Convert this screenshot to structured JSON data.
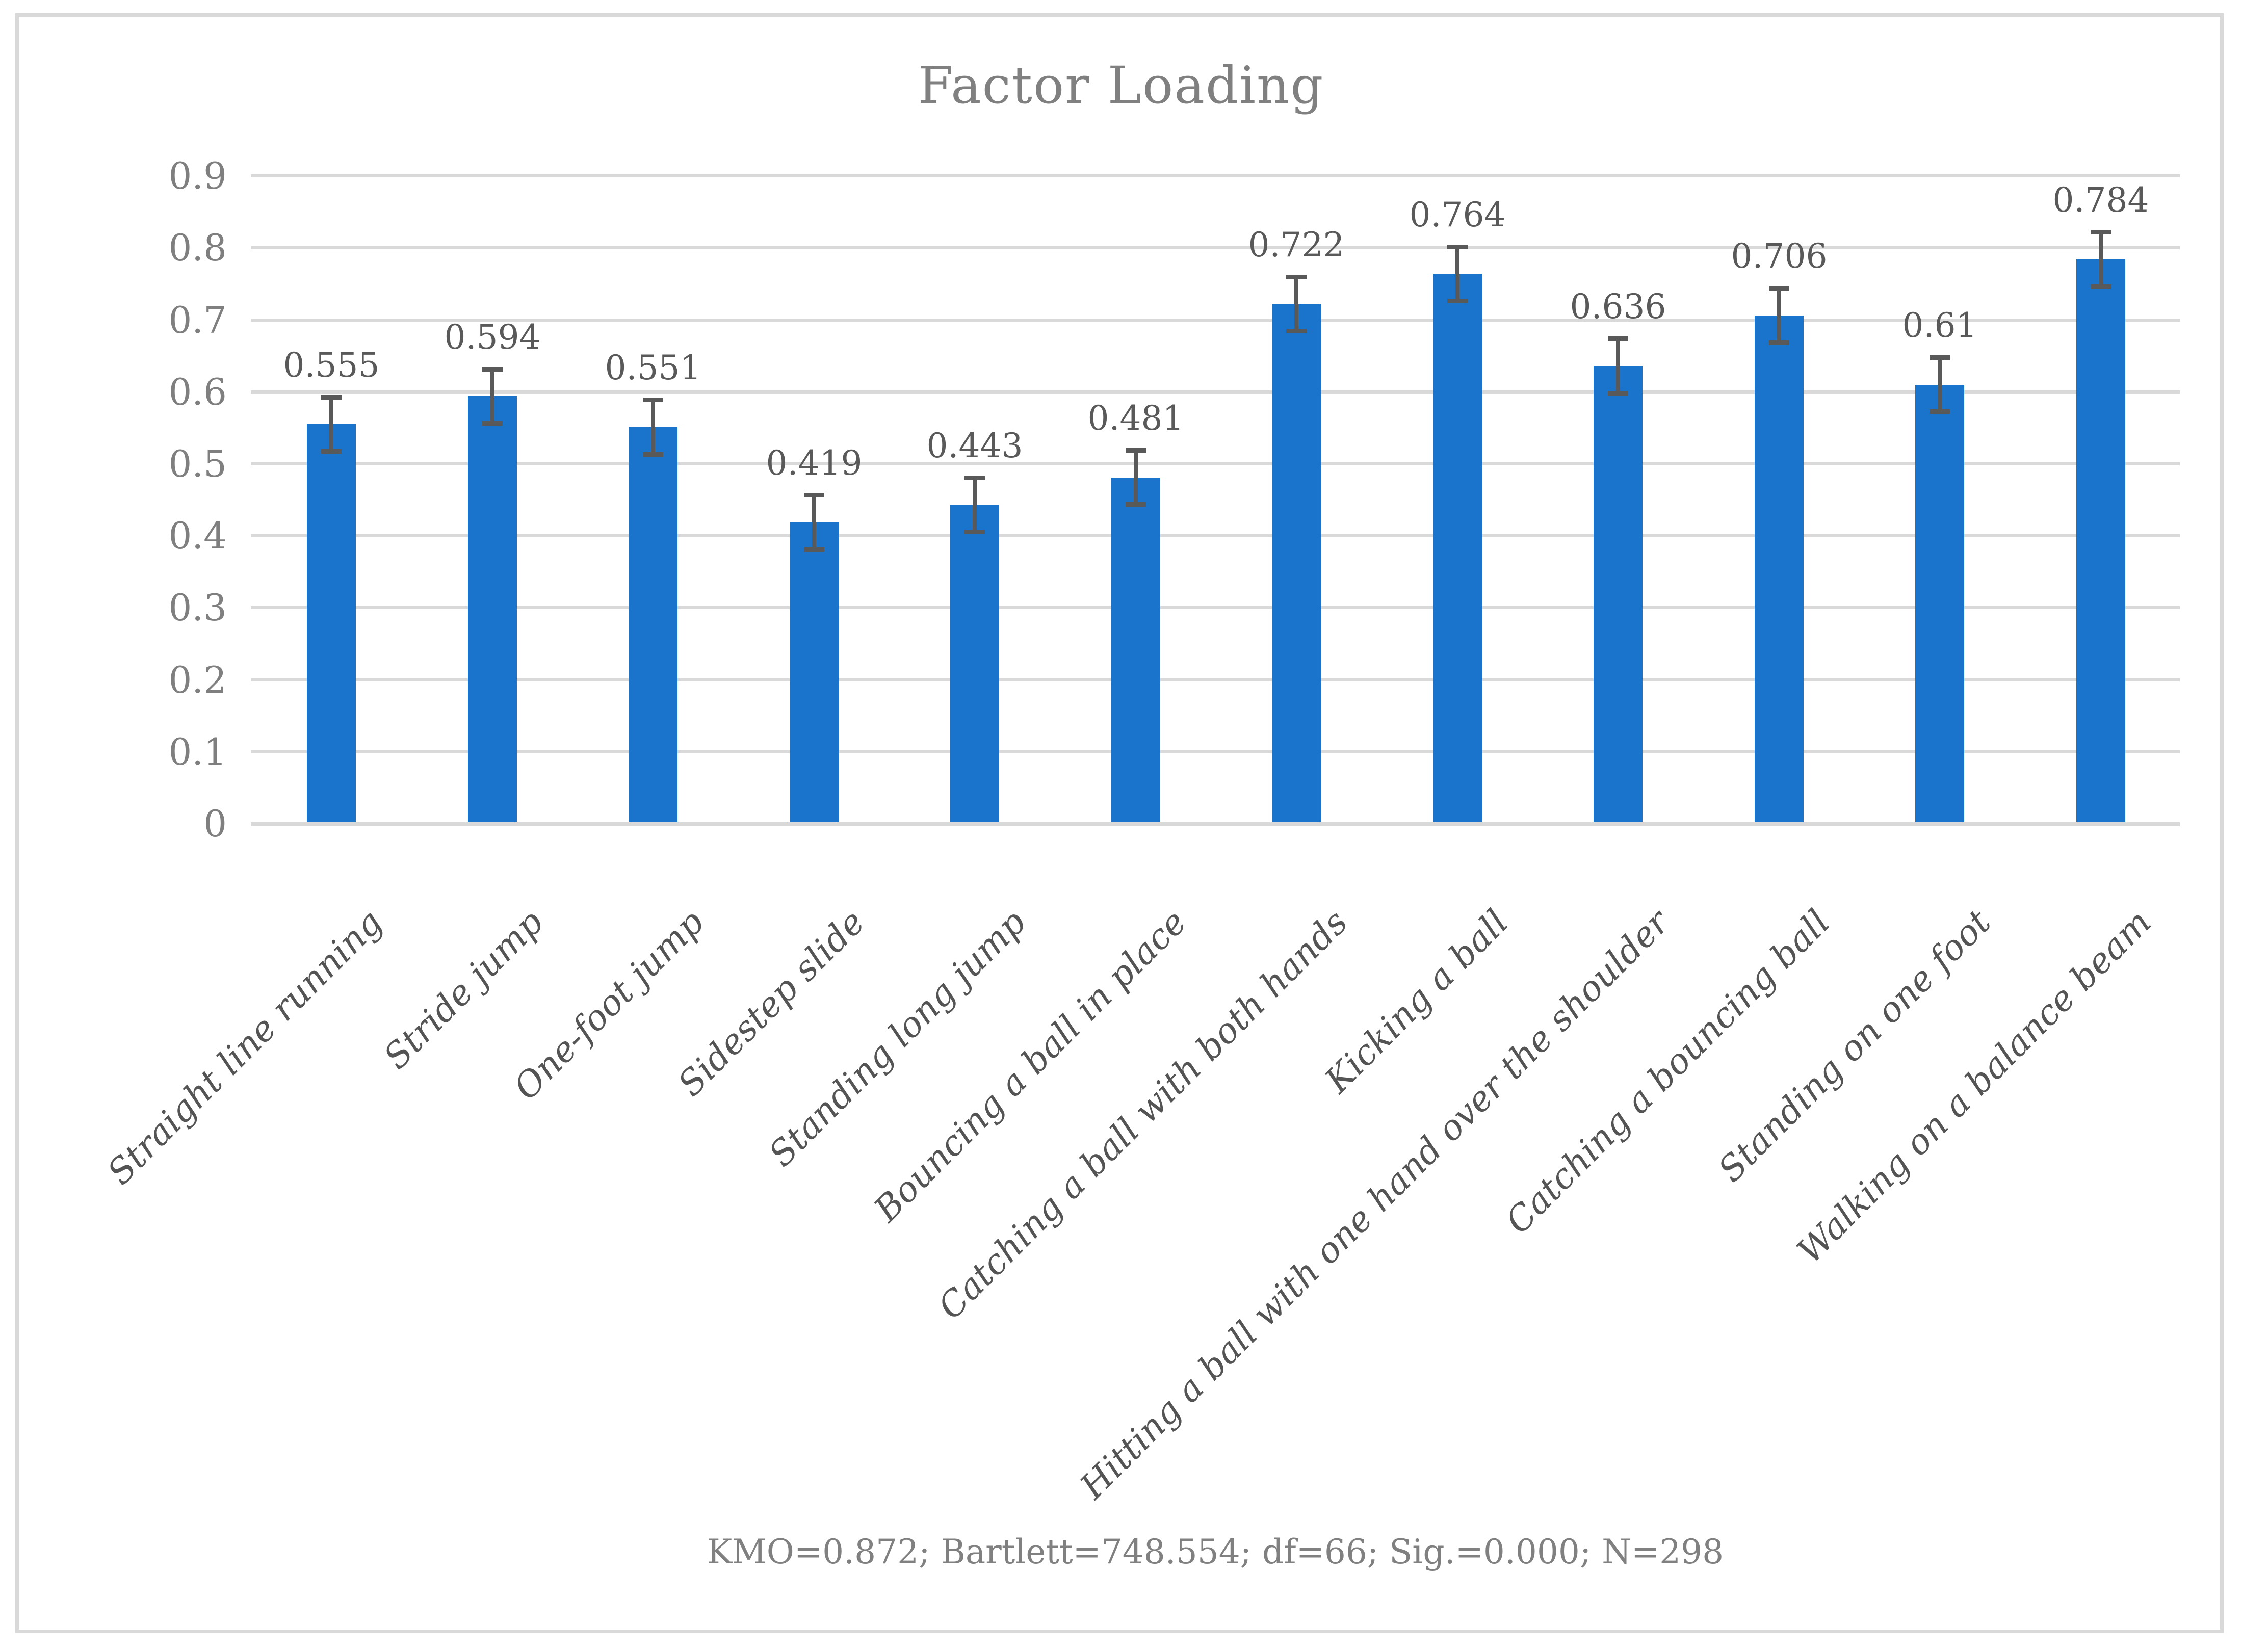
{
  "chart_data": {
    "type": "bar",
    "title": "Factor Loading",
    "categories": [
      "Straight line running",
      "Stride jump",
      "One-foot jump",
      "Sidestep slide",
      "Standing long jump",
      "Bouncing a ball in place",
      "Catching a ball with both hands",
      "Kicking a ball",
      "Hitting a ball with one hand over the shoulder",
      "Catching a bouncing ball",
      "Standing on one foot",
      "Walking on a balance beam"
    ],
    "values": [
      0.555,
      0.594,
      0.551,
      0.419,
      0.443,
      0.481,
      0.722,
      0.764,
      0.636,
      0.706,
      0.61,
      0.784
    ],
    "value_labels": [
      "0.555",
      "0.594",
      "0.551",
      "0.419",
      "0.443",
      "0.481",
      "0.722",
      "0.764",
      "0.636",
      "0.706",
      "0.61",
      "0.784"
    ],
    "error_bars": 0.038,
    "ylim": [
      0,
      0.9
    ],
    "ytick_labels": [
      "0",
      "0.1",
      "0.2",
      "0.3",
      "0.4",
      "0.5",
      "0.6",
      "0.7",
      "0.8",
      "0.9"
    ],
    "xlabel": "",
    "ylabel": "",
    "grid": "horizontal",
    "legend": "none",
    "annotation": "KMO=0.872; Bartlett=748.554; df=66; Sig.=0.000; N=298"
  },
  "colors": {
    "bar": "#1B74CB",
    "gridline": "#D9D9D9",
    "axis_line": "#D9D9D9",
    "frame_border": "#D9D9D9",
    "error_bar": "#595959",
    "title_text": "#808080",
    "ytick_text": "#7F7F7F",
    "value_label_text": "#595959",
    "category_text": "#545454",
    "footer_text": "#808080"
  }
}
